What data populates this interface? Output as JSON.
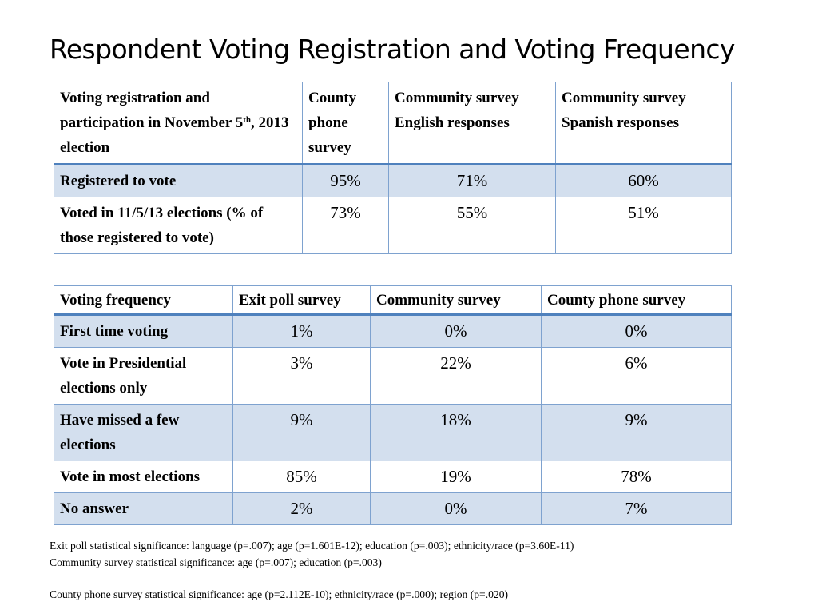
{
  "slide": {
    "title": "Respondent Voting Registration and Voting Frequency"
  },
  "table1": {
    "header": {
      "col1_line1": "Voting registration and participation in November 5",
      "col1_sup": "th",
      "col1_line2": ", 2013 election",
      "col2": "County phone survey",
      "col3": "Community survey English responses",
      "col4": "Community survey Spanish responses"
    },
    "rows": [
      {
        "label": "Registered to vote",
        "county_phone": "95%",
        "community_english": "71%",
        "community_spanish": "60%"
      },
      {
        "label": "Voted in 11/5/13 elections (% of those registered to vote)",
        "county_phone": "73%",
        "community_english": "55%",
        "community_spanish": "51%"
      }
    ]
  },
  "table2": {
    "header": {
      "col1": "Voting frequency",
      "col2": "Exit poll survey",
      "col3": "Community survey",
      "col4": "County phone survey"
    },
    "rows": [
      {
        "label": "First time voting",
        "exit_poll": "1%",
        "community": "0%",
        "county_phone": "0%"
      },
      {
        "label": "Vote in Presidential elections only",
        "exit_poll": "3%",
        "community": "22%",
        "county_phone": "6%"
      },
      {
        "label": "Have missed a few elections",
        "exit_poll": "9%",
        "community": "18%",
        "county_phone": "9%"
      },
      {
        "label": "Vote in most elections",
        "exit_poll": "85%",
        "community": "19%",
        "county_phone": "78%"
      },
      {
        "label": "No answer",
        "exit_poll": "2%",
        "community": "0%",
        "county_phone": "7%"
      }
    ]
  },
  "notes": {
    "exit_poll": "Exit poll statistical significance: language (p=.007); age (p=1.601E-12); education (p=.003); ethnicity/race (p=3.60E-11)",
    "community": "Community survey statistical significance: age (p=.007); education (p=.003)",
    "county_phone": "County phone survey statistical significance: age (p=2.112E-10); ethnicity/race (p=.000); region (p=.020)"
  },
  "colors": {
    "band_fill": "#d3dfee",
    "border": "#7ea2cf",
    "header_rule": "#4f81bd"
  }
}
